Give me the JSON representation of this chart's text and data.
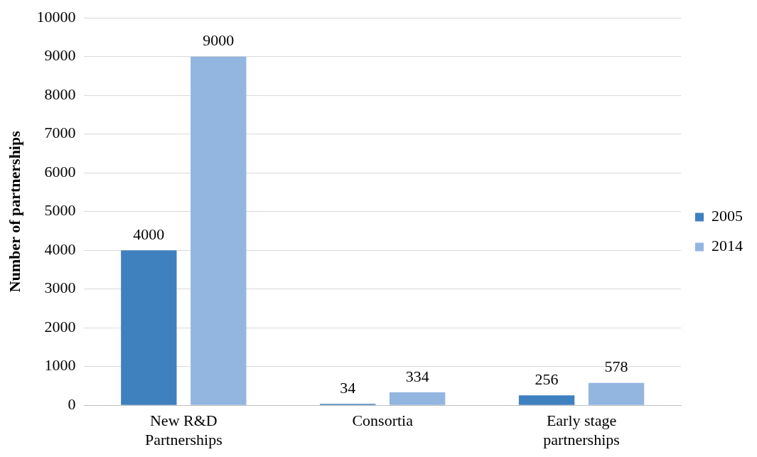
{
  "chart_data": {
    "type": "bar",
    "ylabel": "Number of partnerships",
    "categories": [
      "New R&D Partnerships",
      "Consortia",
      "Early stage partnerships"
    ],
    "series": [
      {
        "name": "2005",
        "color": "#3f80bf",
        "values": [
          4000,
          34,
          256
        ]
      },
      {
        "name": "2014",
        "color": "#93b6e0",
        "values": [
          9000,
          334,
          578
        ]
      }
    ],
    "ylim": [
      0,
      10000
    ],
    "yticks": [
      0,
      1000,
      2000,
      3000,
      4000,
      5000,
      6000,
      7000,
      8000,
      9000,
      10000
    ],
    "grid": "y",
    "legend": "right",
    "data_labels": true
  }
}
